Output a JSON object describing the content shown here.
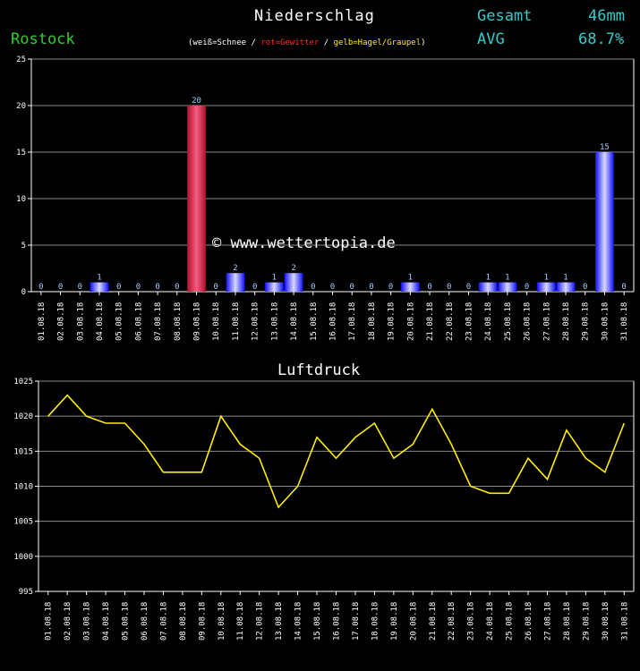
{
  "header": {
    "title": "Niederschlag",
    "station": "Rostock",
    "legend": {
      "open": "(",
      "snow": "weiß=Schnee",
      "sep1": " / ",
      "thunder": "rot=Gewitter",
      "sep2": " / ",
      "hail": "gelb=Hagel/Graupel",
      "close": ")"
    },
    "total_label": "Gesamt",
    "total_value": "46mm",
    "avg_label": "AVG",
    "avg_value": "68.7%"
  },
  "watermark": "© www.wettertopia.de",
  "colors": {
    "background": "#000000",
    "axis": "#ffffff",
    "grid": "#8a8a8a",
    "rain": "#2a2aff",
    "thunder": "#cc1e3c",
    "pressure_line": "#ffee00",
    "value_label": "#aaccff",
    "station": "#33cc33",
    "summary": "#33cccc"
  },
  "chart_data": [
    {
      "type": "bar",
      "title": "",
      "ylim": [
        0,
        25
      ],
      "yticks": [
        0,
        5,
        10,
        15,
        20,
        25
      ],
      "grid": true,
      "categories": [
        "01.08.18",
        "02.08.18",
        "03.08.18",
        "04.08.18",
        "05.08.18",
        "06.08.18",
        "07.08.18",
        "08.08.18",
        "09.08.18",
        "10.08.18",
        "11.08.18",
        "12.08.18",
        "13.08.18",
        "14.08.18",
        "15.08.18",
        "16.08.18",
        "17.08.18",
        "18.08.18",
        "19.08.18",
        "20.08.18",
        "21.08.18",
        "22.08.18",
        "23.08.18",
        "24.08.18",
        "25.08.18",
        "26.08.18",
        "27.08.18",
        "28.08.18",
        "29.08.18",
        "30.08.18",
        "31.08.18"
      ],
      "values": [
        0,
        0,
        0,
        1,
        0,
        0,
        0,
        0,
        20,
        0,
        2,
        0,
        1,
        2,
        0,
        0,
        0,
        0,
        0,
        1,
        0,
        0,
        0,
        1,
        1,
        0,
        1,
        1,
        0,
        15,
        0
      ],
      "bar_type": [
        "rain",
        "rain",
        "rain",
        "rain",
        "rain",
        "rain",
        "rain",
        "rain",
        "thunder",
        "rain",
        "rain",
        "rain",
        "rain",
        "rain",
        "rain",
        "rain",
        "rain",
        "rain",
        "rain",
        "rain",
        "rain",
        "rain",
        "rain",
        "rain",
        "rain",
        "rain",
        "rain",
        "rain",
        "rain",
        "rain",
        "rain"
      ]
    },
    {
      "type": "line",
      "title": "Luftdruck",
      "ylim": [
        995,
        1025
      ],
      "yticks": [
        995,
        1000,
        1005,
        1010,
        1015,
        1020,
        1025
      ],
      "grid": true,
      "categories": [
        "01.08.18",
        "02.08.18",
        "03.08.18",
        "04.08.18",
        "05.08.18",
        "06.08.18",
        "07.08.18",
        "08.08.18",
        "09.08.18",
        "10.08.18",
        "11.08.18",
        "12.08.18",
        "13.08.18",
        "14.08.18",
        "15.08.18",
        "16.08.18",
        "17.08.18",
        "18.08.18",
        "19.08.18",
        "20.08.18",
        "21.08.18",
        "22.08.18",
        "23.08.18",
        "24.08.18",
        "25.08.18",
        "26.08.18",
        "27.08.18",
        "28.08.18",
        "29.08.18",
        "30.08.18",
        "31.08.18"
      ],
      "values": [
        1020,
        1023,
        1020,
        1019,
        1019,
        1016,
        1012,
        1012,
        1012,
        1020,
        1016,
        1014,
        1007,
        1010,
        1017,
        1014,
        1017,
        1019,
        1014,
        1016,
        1021,
        1016,
        1010,
        1009,
        1009,
        1014,
        1011,
        1018,
        1014,
        1012,
        1019
      ]
    }
  ]
}
